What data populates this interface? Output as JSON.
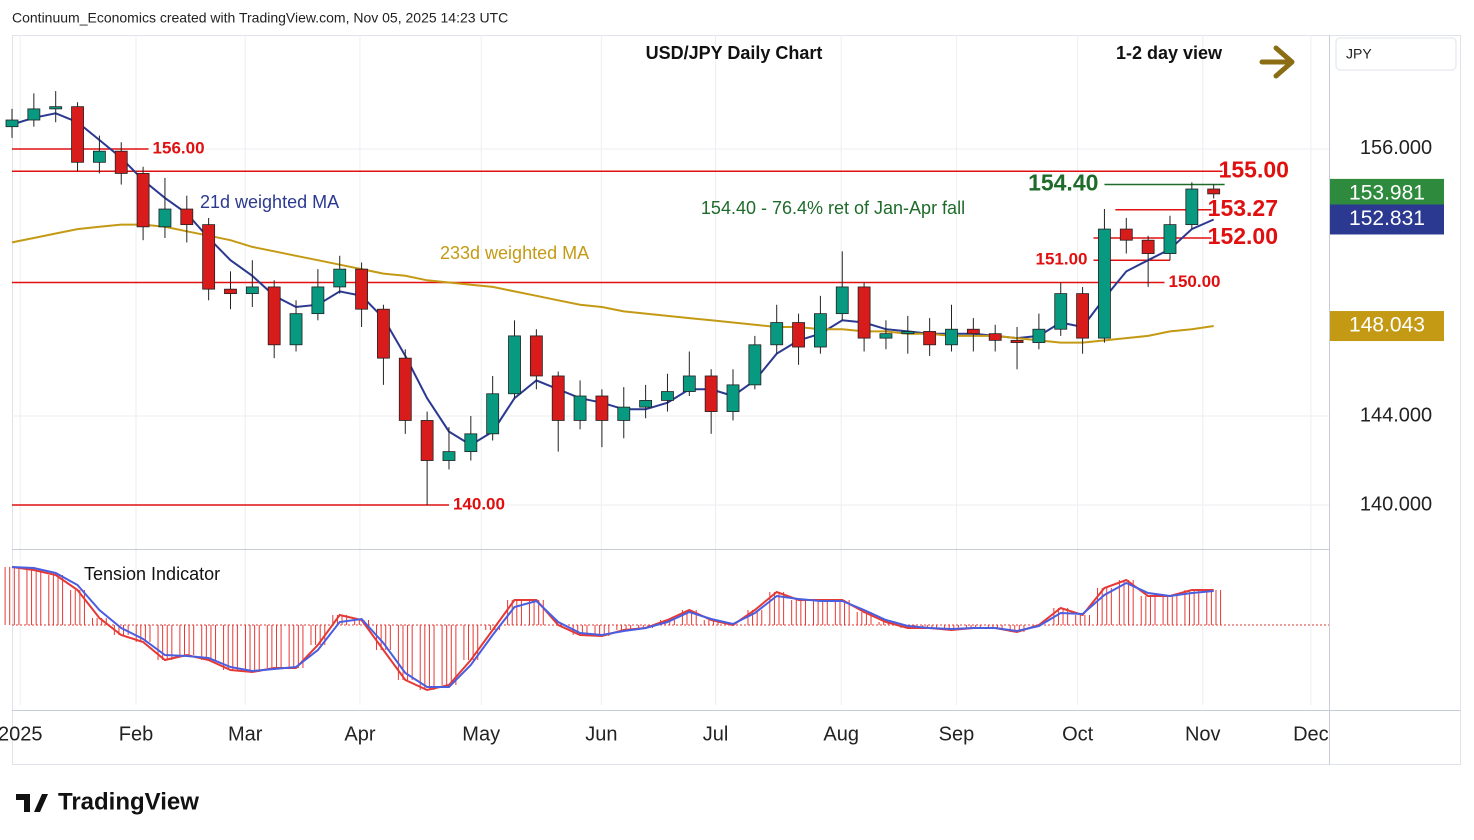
{
  "header": "Continuum_Economics created with TradingView.com, Nov 05, 2025 14:23 UTC",
  "footer": "TradingView",
  "chart_data": {
    "type": "candlestick",
    "title": "USD/JPY Daily Chart",
    "subtitle": "1-2 day view",
    "currency": "JPY",
    "x": [
      0,
      4,
      8,
      12,
      16,
      20,
      24,
      28,
      32,
      36,
      40,
      44,
      48,
      52,
      56,
      60,
      64,
      68,
      72,
      76,
      80,
      84,
      88,
      92,
      96,
      100,
      104,
      108,
      112,
      116,
      120,
      124,
      128,
      132,
      136,
      140,
      144,
      148,
      152,
      156,
      160,
      164,
      168,
      172,
      176,
      180,
      184,
      188,
      192,
      196,
      200,
      204,
      208,
      212,
      216,
      220
    ],
    "open": [
      157.0,
      157.3,
      157.8,
      157.9,
      155.4,
      155.9,
      154.9,
      152.5,
      153.3,
      152.6,
      149.7,
      149.5,
      149.8,
      147.2,
      148.6,
      149.8,
      150.6,
      148.8,
      146.6,
      143.8,
      142.0,
      142.4,
      143.2,
      145.0,
      147.6,
      145.8,
      143.8,
      144.9,
      143.8,
      144.4,
      144.7,
      145.1,
      145.8,
      144.2,
      145.4,
      147.2,
      148.2,
      147.1,
      148.6,
      149.8,
      147.5,
      147.7,
      147.8,
      147.2,
      147.9,
      147.7,
      147.4,
      147.3,
      147.9,
      149.5,
      147.5,
      152.4,
      151.9,
      151.3,
      152.6,
      154.2
    ],
    "high": [
      157.8,
      158.5,
      158.6,
      158.1,
      156.6,
      156.3,
      155.2,
      154.7,
      153.9,
      152.9,
      150.5,
      151.0,
      150.1,
      149.2,
      150.6,
      151.2,
      150.9,
      149.0,
      147.0,
      144.2,
      143.5,
      144.0,
      145.8,
      148.3,
      147.9,
      146.0,
      145.6,
      145.2,
      145.3,
      145.4,
      145.9,
      146.9,
      146.1,
      146.1,
      147.6,
      149.0,
      148.6,
      149.4,
      151.4,
      150.0,
      148.3,
      148.5,
      148.4,
      149.0,
      148.4,
      148.1,
      148.0,
      148.6,
      150.0,
      149.8,
      153.3,
      152.9,
      152.1,
      153.0,
      154.5,
      154.4
    ],
    "low": [
      156.5,
      157.0,
      157.2,
      155.0,
      154.9,
      154.4,
      151.9,
      152.0,
      151.8,
      149.2,
      148.8,
      148.9,
      146.6,
      146.9,
      148.3,
      149.5,
      148.0,
      145.4,
      143.2,
      140.0,
      141.6,
      142.0,
      142.9,
      144.8,
      145.2,
      142.4,
      143.4,
      142.6,
      143.0,
      143.9,
      144.2,
      144.9,
      143.2,
      143.8,
      145.2,
      146.8,
      146.3,
      146.8,
      148.3,
      146.9,
      147.0,
      146.8,
      146.7,
      146.9,
      146.9,
      146.9,
      146.1,
      147.0,
      147.6,
      146.8,
      147.3,
      151.3,
      149.8,
      151.0,
      152.4,
      153.6
    ],
    "close": [
      157.3,
      157.8,
      157.9,
      155.4,
      155.9,
      154.9,
      152.5,
      153.3,
      152.6,
      149.7,
      149.5,
      149.8,
      147.2,
      148.6,
      149.8,
      150.6,
      148.8,
      146.6,
      143.8,
      142.0,
      142.4,
      143.2,
      145.0,
      147.6,
      145.8,
      143.8,
      144.9,
      143.8,
      144.4,
      144.7,
      145.1,
      145.8,
      144.2,
      145.4,
      147.2,
      148.2,
      147.1,
      148.6,
      149.8,
      147.5,
      147.7,
      147.8,
      147.2,
      147.9,
      147.7,
      147.4,
      147.3,
      147.9,
      149.5,
      147.5,
      152.4,
      151.9,
      151.3,
      152.6,
      154.2,
      153.981
    ],
    "up_color": "#089981",
    "down_color": "#d81b1b",
    "xlim": [
      0,
      238
    ],
    "xticks": [
      {
        "value": 1.5,
        "label": "2025"
      },
      {
        "value": 22.7,
        "label": "Feb"
      },
      {
        "value": 42.7,
        "label": "Mar"
      },
      {
        "value": 63.7,
        "label": "Apr"
      },
      {
        "value": 85.9,
        "label": "May"
      },
      {
        "value": 107.9,
        "label": "Jun"
      },
      {
        "value": 128.8,
        "label": "Jul"
      },
      {
        "value": 151.8,
        "label": "Aug"
      },
      {
        "value": 172.9,
        "label": "Sep"
      },
      {
        "value": 195.1,
        "label": "Oct"
      },
      {
        "value": 218,
        "label": "Nov"
      },
      {
        "value": 237.8,
        "label": "Dec"
      }
    ],
    "ylim": [
      138.07,
      161.12
    ],
    "yticks": [
      {
        "value": 156,
        "label": "156.000"
      },
      {
        "value": 144,
        "label": "144.000"
      },
      {
        "value": 140,
        "label": "140.000"
      }
    ],
    "grid": true,
    "lines": [
      {
        "name": "21d weighted MA",
        "color": "#2b3990",
        "values": [
          157.1,
          157.4,
          157.6,
          157.2,
          156.4,
          155.6,
          154.6,
          153.8,
          153.1,
          152.0,
          151.0,
          150.3,
          149.4,
          148.9,
          149.0,
          149.6,
          149.4,
          148.4,
          146.7,
          144.8,
          143.3,
          142.7,
          143.3,
          144.8,
          145.6,
          145.2,
          144.8,
          144.6,
          144.3,
          144.3,
          144.6,
          145.2,
          145.2,
          144.9,
          145.6,
          146.8,
          147.4,
          147.7,
          148.3,
          148.2,
          147.9,
          147.8,
          147.7,
          147.7,
          147.7,
          147.6,
          147.5,
          147.6,
          148.2,
          148.0,
          149.3,
          150.5,
          151.0,
          151.5,
          152.4,
          152.831
        ]
      },
      {
        "name": "233d weighted MA",
        "color": "#c49a14",
        "values": [
          151.8,
          152.0,
          152.2,
          152.4,
          152.5,
          152.6,
          152.6,
          152.5,
          152.3,
          152.1,
          151.9,
          151.6,
          151.4,
          151.2,
          151.0,
          150.8,
          150.6,
          150.4,
          150.3,
          150.1,
          150.0,
          149.9,
          149.8,
          149.6,
          149.4,
          149.2,
          149.0,
          148.9,
          148.7,
          148.6,
          148.5,
          148.4,
          148.3,
          148.2,
          148.1,
          148.0,
          148.0,
          147.9,
          147.9,
          147.8,
          147.8,
          147.7,
          147.7,
          147.6,
          147.6,
          147.6,
          147.5,
          147.4,
          147.3,
          147.3,
          147.4,
          147.5,
          147.6,
          147.8,
          147.9,
          148.043
        ]
      }
    ],
    "levels": [
      {
        "value": 156,
        "label": "156.00",
        "from": 0,
        "to": 25,
        "color": "#e01010",
        "side": "right",
        "size": "small"
      },
      {
        "value": 155,
        "label": "155.00",
        "from": 0,
        "to": 222,
        "color": "#e01010",
        "side": "right",
        "size": "large"
      },
      {
        "value": 154.4,
        "label": "154.40",
        "from": 200,
        "to": 222,
        "color": "#1e6b2a",
        "side": "left",
        "size": "large"
      },
      {
        "value": 153.27,
        "label": "153.27",
        "from": 202,
        "to": 220,
        "color": "#e01010",
        "side": "right",
        "size": "large"
      },
      {
        "value": 152,
        "label": "152.00",
        "from": 198,
        "to": 220,
        "color": "#e01010",
        "side": "right",
        "size": "large"
      },
      {
        "value": 151,
        "label": "151.00",
        "from": 198,
        "to": 212,
        "color": "#e01010",
        "side": "left",
        "size": "small"
      },
      {
        "value": 150,
        "label": "150.00",
        "from": 0,
        "to": 211,
        "color": "#e01010",
        "side": "right",
        "size": "small"
      },
      {
        "value": 140,
        "label": "140.00",
        "from": 0,
        "to": 80,
        "color": "#e01010",
        "side": "right",
        "size": "small"
      }
    ],
    "annotation": "154.40 - 76.4% ret of Jan-Apr fall",
    "price_tags": [
      {
        "value": 153.981,
        "label": "153.981",
        "color": "#2e8b3e"
      },
      {
        "value": 152.831,
        "label": "152.831",
        "color": "#2b3990"
      },
      {
        "value": 148.043,
        "label": "148.043",
        "color": "#c49a14"
      }
    ],
    "indicator": {
      "title": "Tension Indicator",
      "ylim": [
        -80,
        70
      ],
      "series": [
        {
          "color": "#e53935",
          "values": [
            58,
            55,
            50,
            35,
            7,
            -10,
            -17,
            -35,
            -30,
            -35,
            -45,
            -47,
            -43,
            -43,
            -20,
            10,
            5,
            -25,
            -55,
            -65,
            -60,
            -35,
            -5,
            25,
            25,
            0,
            -10,
            -11,
            -5,
            -3,
            5,
            15,
            5,
            0,
            15,
            33,
            25,
            25,
            25,
            13,
            3,
            -3,
            -3,
            -5,
            -3,
            -3,
            -7,
            0,
            17,
            10,
            37,
            45,
            29,
            29,
            35,
            35
          ]
        },
        {
          "color": "#4a5fe0",
          "values": [
            58,
            57,
            52,
            40,
            15,
            -3,
            -14,
            -30,
            -31,
            -33,
            -42,
            -46,
            -44,
            -42,
            -25,
            3,
            6,
            -18,
            -48,
            -62,
            -62,
            -40,
            -10,
            18,
            24,
            3,
            -8,
            -10,
            -6,
            -3,
            3,
            13,
            6,
            1,
            12,
            29,
            26,
            24,
            24,
            15,
            5,
            -1,
            -3,
            -4,
            -3,
            -3,
            -6,
            -1,
            12,
            11,
            30,
            42,
            32,
            29,
            32,
            34
          ]
        }
      ]
    }
  }
}
